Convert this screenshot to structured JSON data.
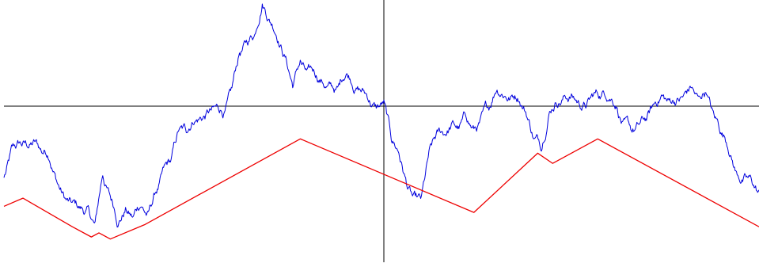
{
  "chart_data": {
    "type": "line",
    "title": "",
    "xlabel": "",
    "ylabel": "",
    "grid": false,
    "legend": "none",
    "axes": {
      "x_range": [
        -1,
        1
      ],
      "y_range": [
        -1.4,
        1.0
      ],
      "axis_color": "#000000",
      "origin": [
        0,
        0
      ]
    },
    "series": [
      {
        "style": "random-walk",
        "color": "#0000dd",
        "points": [
          [
            -1.0,
            -0.7
          ],
          [
            -0.98,
            -0.38
          ],
          [
            -0.96,
            -0.36
          ],
          [
            -0.94,
            -0.39
          ],
          [
            -0.92,
            -0.34
          ],
          [
            -0.9,
            -0.46
          ],
          [
            -0.88,
            -0.54
          ],
          [
            -0.86,
            -0.75
          ],
          [
            -0.84,
            -0.9
          ],
          [
            -0.82,
            -0.94
          ],
          [
            -0.8,
            -0.98
          ],
          [
            -0.78,
            -0.98
          ],
          [
            -0.76,
            -1.13
          ],
          [
            -0.74,
            -0.68
          ],
          [
            -0.72,
            -0.88
          ],
          [
            -0.7,
            -1.18
          ],
          [
            -0.68,
            -0.99
          ],
          [
            -0.66,
            -1.08
          ],
          [
            -0.64,
            -0.99
          ],
          [
            -0.62,
            -1.03
          ],
          [
            -0.6,
            -0.84
          ],
          [
            -0.58,
            -0.6
          ],
          [
            -0.56,
            -0.52
          ],
          [
            -0.54,
            -0.24
          ],
          [
            -0.52,
            -0.26
          ],
          [
            -0.5,
            -0.18
          ],
          [
            -0.48,
            -0.14
          ],
          [
            -0.46,
            -0.05
          ],
          [
            -0.44,
            0.02
          ],
          [
            -0.42,
            -0.06
          ],
          [
            -0.4,
            0.18
          ],
          [
            -0.38,
            0.52
          ],
          [
            -0.36,
            0.62
          ],
          [
            -0.34,
            0.7
          ],
          [
            -0.32,
            1.0
          ],
          [
            -0.3,
            0.82
          ],
          [
            -0.28,
            0.62
          ],
          [
            -0.26,
            0.48
          ],
          [
            -0.24,
            0.18
          ],
          [
            -0.22,
            0.45
          ],
          [
            -0.2,
            0.38
          ],
          [
            -0.18,
            0.28
          ],
          [
            -0.16,
            0.22
          ],
          [
            -0.14,
            0.23
          ],
          [
            -0.12,
            0.2
          ],
          [
            -0.1,
            0.3
          ],
          [
            -0.08,
            0.14
          ],
          [
            -0.06,
            0.14
          ],
          [
            -0.04,
            0.04
          ],
          [
            -0.02,
            -0.02
          ],
          [
            0.0,
            0.06
          ],
          [
            0.02,
            -0.34
          ],
          [
            0.04,
            -0.46
          ],
          [
            0.06,
            -0.76
          ],
          [
            0.08,
            -0.85
          ],
          [
            0.1,
            -0.88
          ],
          [
            0.12,
            -0.44
          ],
          [
            0.14,
            -0.26
          ],
          [
            0.16,
            -0.28
          ],
          [
            0.18,
            -0.17
          ],
          [
            0.2,
            -0.22
          ],
          [
            0.22,
            -0.12
          ],
          [
            0.24,
            -0.22
          ],
          [
            0.26,
            -0.07
          ],
          [
            0.28,
            -0.04
          ],
          [
            0.3,
            0.14
          ],
          [
            0.32,
            0.09
          ],
          [
            0.34,
            0.1
          ],
          [
            0.36,
            0.04
          ],
          [
            0.38,
            -0.1
          ],
          [
            0.4,
            -0.32
          ],
          [
            0.42,
            -0.44
          ],
          [
            0.44,
            -0.08
          ],
          [
            0.46,
            0.02
          ],
          [
            0.48,
            0.1
          ],
          [
            0.5,
            0.12
          ],
          [
            0.52,
            0.03
          ],
          [
            0.54,
            0.0
          ],
          [
            0.56,
            0.13
          ],
          [
            0.58,
            0.1
          ],
          [
            0.6,
            0.05
          ],
          [
            0.62,
            -0.02
          ],
          [
            0.64,
            -0.12
          ],
          [
            0.66,
            -0.24
          ],
          [
            0.68,
            -0.18
          ],
          [
            0.7,
            -0.14
          ],
          [
            0.72,
            0.02
          ],
          [
            0.74,
            0.11
          ],
          [
            0.76,
            0.06
          ],
          [
            0.78,
            0.05
          ],
          [
            0.8,
            0.12
          ],
          [
            0.82,
            0.18
          ],
          [
            0.84,
            0.1
          ],
          [
            0.86,
            0.11
          ],
          [
            0.88,
            -0.08
          ],
          [
            0.9,
            -0.28
          ],
          [
            0.92,
            -0.48
          ],
          [
            0.94,
            -0.64
          ],
          [
            0.96,
            -0.68
          ],
          [
            0.98,
            -0.72
          ],
          [
            1.0,
            -0.82
          ]
        ]
      },
      {
        "style": "polyline",
        "color": "#ee0000",
        "points": [
          [
            -1.0,
            -0.98
          ],
          [
            -0.95,
            -0.9
          ],
          [
            -0.82,
            -1.18
          ],
          [
            -0.77,
            -1.28
          ],
          [
            -0.75,
            -1.24
          ],
          [
            -0.72,
            -1.3
          ],
          [
            -0.63,
            -1.16
          ],
          [
            -0.22,
            -0.32
          ],
          [
            0.24,
            -1.04
          ],
          [
            0.41,
            -0.46
          ],
          [
            0.45,
            -0.56
          ],
          [
            0.57,
            -0.32
          ],
          [
            1.0,
            -1.18
          ]
        ]
      }
    ]
  }
}
